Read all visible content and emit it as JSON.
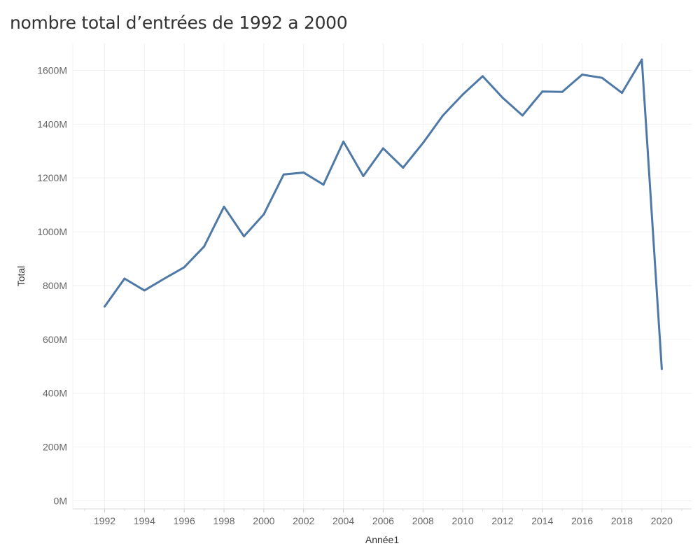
{
  "chart_data": {
    "type": "line",
    "title": "nombre total d’entrées de 1992 a 2000",
    "xlabel": "Année1",
    "ylabel": "Total",
    "xlim": [
      1990.4,
      2021.5
    ],
    "ylim": [
      -30,
      1700
    ],
    "y_ticks": [
      0,
      200,
      400,
      600,
      800,
      1000,
      1200,
      1400,
      1600
    ],
    "y_tick_labels": [
      "0M",
      "200M",
      "400M",
      "600M",
      "800M",
      "1000M",
      "1200M",
      "1400M",
      "1600M"
    ],
    "x_ticks": [
      1992,
      1994,
      1996,
      1998,
      2000,
      2002,
      2004,
      2006,
      2008,
      2010,
      2012,
      2014,
      2016,
      2018,
      2020
    ],
    "x_tick_labels": [
      "1992",
      "1994",
      "1996",
      "1998",
      "2000",
      "2002",
      "2004",
      "2006",
      "2008",
      "2010",
      "2012",
      "2014",
      "2016",
      "2018",
      "2020"
    ],
    "grid": true,
    "color": "#4e79a7",
    "series": [
      {
        "x": [
          1992,
          1993,
          1994,
          1995,
          1996,
          1997,
          1998,
          1999,
          2000,
          2001,
          2002,
          2003,
          2004,
          2005,
          2006,
          2007,
          2008,
          2009,
          2010,
          2011,
          2012,
          2013,
          2014,
          2015,
          2016,
          2017,
          2018,
          2019,
          2020
        ],
        "values": [
          722,
          826,
          782,
          826,
          868,
          945,
          1093,
          983,
          1065,
          1213,
          1220,
          1175,
          1335,
          1207,
          1310,
          1238,
          1330,
          1432,
          1510,
          1578,
          1498,
          1432,
          1521,
          1520,
          1584,
          1572,
          1516,
          1640,
          490
        ]
      }
    ]
  }
}
